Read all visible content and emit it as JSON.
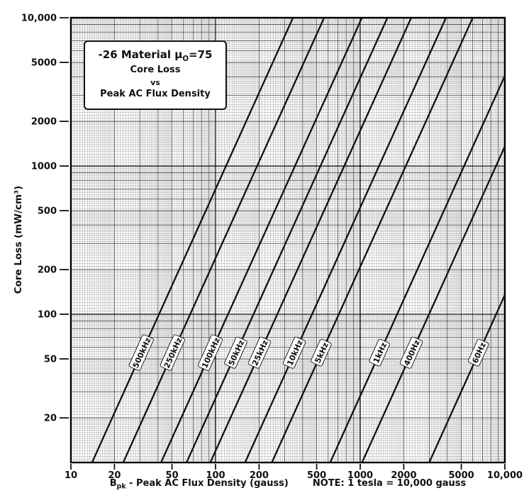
{
  "title_box": {
    "line1_pre": "-26 Material ",
    "line1_mu": "μ",
    "line1_sub": "O",
    "line1_post": "=75",
    "line2": "Core Loss",
    "line3": "vs",
    "line4": "Peak AC Flux Density"
  },
  "axes": {
    "y_title": "Core Loss (mW/cm³)",
    "x_title_pre": "B",
    "x_title_sub": "pk",
    "x_title_post": " - Peak AC Flux Density (gauss)",
    "note": "NOTE: 1 tesla = 10,000 gauss"
  },
  "chart_data": {
    "type": "line",
    "title": "-26 Material Core Loss vs Peak AC Flux Density",
    "xlabel": "Bpk - Peak AC Flux Density (gauss)",
    "ylabel": "Core Loss (mW/cm³)",
    "x_scale": "log",
    "y_scale": "log",
    "x_range": [
      10,
      10000
    ],
    "y_range": [
      10,
      10000
    ],
    "units": {
      "x": "gauss",
      "y": "mW/cm³"
    },
    "grid": "log-log fine grid",
    "x_ticks": [
      {
        "v": 10,
        "label": "10"
      },
      {
        "v": 20,
        "label": "20"
      },
      {
        "v": 50,
        "label": "50"
      },
      {
        "v": 100,
        "label": "100"
      },
      {
        "v": 200,
        "label": "200"
      },
      {
        "v": 500,
        "label": "500"
      },
      {
        "v": 1000,
        "label": "1000"
      },
      {
        "v": 2000,
        "label": "2000"
      },
      {
        "v": 5000,
        "label": "5000"
      },
      {
        "v": 10000,
        "label": "10,000"
      }
    ],
    "y_ticks": [
      {
        "v": 10000,
        "label": "10,000"
      },
      {
        "v": 5000,
        "label": "5000"
      },
      {
        "v": 2000,
        "label": "2000"
      },
      {
        "v": 1000,
        "label": "1000"
      },
      {
        "v": 500,
        "label": "500"
      },
      {
        "v": 200,
        "label": "200"
      },
      {
        "v": 100,
        "label": "100"
      },
      {
        "v": 50,
        "label": "50"
      },
      {
        "v": 20,
        "label": "20"
      }
    ],
    "slope_loglog": 2.16,
    "label_p": 55,
    "line_color": "#111111",
    "series": [
      {
        "label": "500kHz",
        "points": [
          [
            14,
            10
          ],
          [
            343,
            10000
          ]
        ]
      },
      {
        "label": "250kHz",
        "points": [
          [
            23,
            10
          ],
          [
            563,
            10000
          ]
        ]
      },
      {
        "label": "100kHz",
        "points": [
          [
            42,
            10
          ],
          [
            1028,
            10000
          ]
        ]
      },
      {
        "label": "50kHz",
        "points": [
          [
            63,
            10
          ],
          [
            1542,
            10000
          ]
        ]
      },
      {
        "label": "25kHz",
        "points": [
          [
            92,
            10
          ],
          [
            2252,
            10000
          ]
        ]
      },
      {
        "label": "10kHz",
        "points": [
          [
            160,
            10
          ],
          [
            3917,
            10000
          ]
        ]
      },
      {
        "label": "5kHz",
        "points": [
          [
            245,
            10
          ],
          [
            5998,
            10000
          ]
        ]
      },
      {
        "label": "1kHz",
        "points": [
          [
            620,
            10
          ],
          [
            10000,
            4060
          ]
        ]
      },
      {
        "label": "400Hz",
        "points": [
          [
            1030,
            10
          ],
          [
            10000,
            1356
          ]
        ]
      },
      {
        "label": "60Hz",
        "points": [
          [
            3000,
            10
          ],
          [
            10000,
            135
          ]
        ]
      }
    ]
  }
}
